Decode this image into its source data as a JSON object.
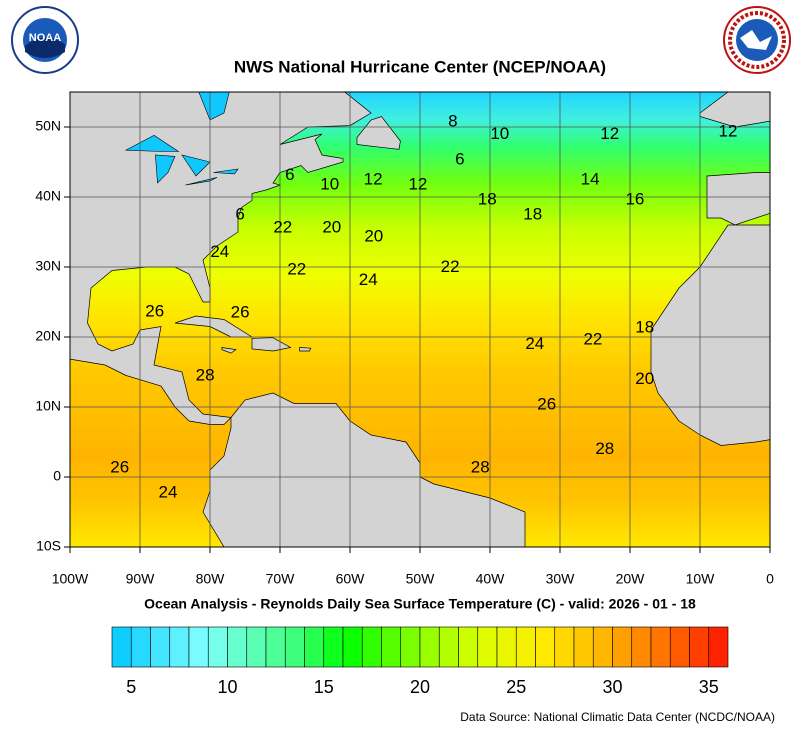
{
  "header": {
    "title": "NWS National Hurricane Center (NCEP/NOAA)",
    "noaa_logo_text": "NOAA"
  },
  "map": {
    "subtitle": "Ocean Analysis - Reynolds Daily Sea Surface Temperature (C) - valid: 2026 - 01 - 18",
    "xlim": [
      -100,
      0
    ],
    "ylim": [
      -10,
      55
    ],
    "grid": true,
    "xticks": [
      {
        "value": -100,
        "label": "100W"
      },
      {
        "value": -90,
        "label": "90W"
      },
      {
        "value": -80,
        "label": "80W"
      },
      {
        "value": -70,
        "label": "70W"
      },
      {
        "value": -60,
        "label": "60W"
      },
      {
        "value": -50,
        "label": "50W"
      },
      {
        "value": -40,
        "label": "40W"
      },
      {
        "value": -30,
        "label": "30W"
      },
      {
        "value": -20,
        "label": "20W"
      },
      {
        "value": -10,
        "label": "10W"
      },
      0
    ],
    "yticks": [
      {
        "value": 50,
        "label": "50N"
      },
      {
        "value": 40,
        "label": "40N"
      },
      {
        "value": 30,
        "label": "30N"
      },
      {
        "value": 20,
        "label": "20N"
      },
      {
        "value": 10,
        "label": "10N"
      },
      0,
      {
        "value": -10,
        "label": "10S"
      }
    ],
    "contour_labels": [
      {
        "value": 8,
        "lon": -45.3,
        "lat": 50.7
      },
      {
        "value": 10,
        "lon": -38.6,
        "lat": 48.9
      },
      {
        "value": 12,
        "lon": -22.9,
        "lat": 48.9
      },
      {
        "value": 12,
        "lon": -6,
        "lat": 49.3
      },
      {
        "value": 6,
        "lon": -68.6,
        "lat": 43.1
      },
      {
        "value": 10,
        "lon": -62.9,
        "lat": 41.7
      },
      {
        "value": 12,
        "lon": -56.7,
        "lat": 42.4
      },
      {
        "value": 12,
        "lon": -50.3,
        "lat": 41.7
      },
      {
        "value": 6,
        "lon": -44.3,
        "lat": 45.3
      },
      {
        "value": 14,
        "lon": -25.7,
        "lat": 42.4
      },
      {
        "value": 16,
        "lon": -19.3,
        "lat": 39.6
      },
      {
        "value": 18,
        "lon": -40.4,
        "lat": 39.6
      },
      {
        "value": 18,
        "lon": -33.9,
        "lat": 37.4
      },
      {
        "value": 6,
        "lon": -75.7,
        "lat": 37.4
      },
      {
        "value": 22,
        "lon": -69.6,
        "lat": 35.6
      },
      {
        "value": 20,
        "lon": -62.6,
        "lat": 35.6
      },
      {
        "value": 20,
        "lon": -56.6,
        "lat": 34.3
      },
      {
        "value": 24,
        "lon": -78.6,
        "lat": 32.1
      },
      {
        "value": 22,
        "lon": -67.6,
        "lat": 29.6
      },
      {
        "value": 24,
        "lon": -57.4,
        "lat": 28.1
      },
      {
        "value": 22,
        "lon": -45.7,
        "lat": 29.9
      },
      {
        "value": 26,
        "lon": -87.9,
        "lat": 23.6
      },
      {
        "value": 26,
        "lon": -75.7,
        "lat": 23.4
      },
      {
        "value": 18,
        "lon": -17.9,
        "lat": 21.3
      },
      {
        "value": 22,
        "lon": -25.3,
        "lat": 19.6
      },
      {
        "value": 24,
        "lon": -33.6,
        "lat": 18.9
      },
      {
        "value": 28,
        "lon": -80.7,
        "lat": 14.4
      },
      {
        "value": 20,
        "lon": -17.9,
        "lat": 13.9
      },
      {
        "value": 26,
        "lon": -31.9,
        "lat": 10.3
      },
      {
        "value": 28,
        "lon": -23.6,
        "lat": 3.9
      },
      {
        "value": 28,
        "lon": -41.4,
        "lat": 1.3
      },
      {
        "value": 26,
        "lon": -92.9,
        "lat": 1.3
      },
      {
        "value": 24,
        "lon": -86,
        "lat": -2.3
      }
    ]
  },
  "colorbar": {
    "range": [
      4,
      36
    ],
    "ticks": [
      5,
      10,
      15,
      20,
      25,
      30,
      35
    ]
  },
  "footer": {
    "source": "Data Source: National Climatic Data Center (NCDC/NOAA)"
  }
}
